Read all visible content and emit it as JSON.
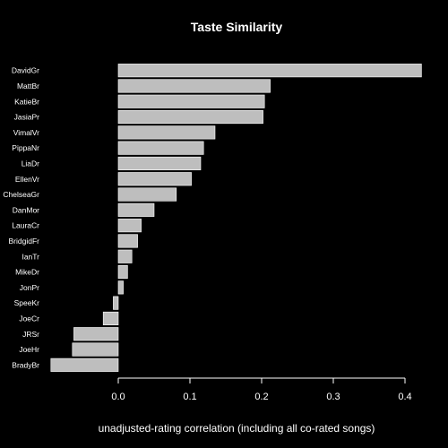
{
  "chart_data": {
    "type": "bar",
    "orientation": "horizontal",
    "title": "Taste Similarity",
    "xlabel": "unadjusted-rating correlation (including all co-rated songs)",
    "ylabel": "",
    "xlim": [
      -0.095,
      0.425
    ],
    "xticks": [
      0.0,
      0.1,
      0.2,
      0.3,
      0.4
    ],
    "xtick_labels": [
      "0.0",
      "0.1",
      "0.2",
      "0.3",
      "0.4"
    ],
    "grid": false,
    "categories": [
      "DavidGr",
      "MattBr",
      "KatieBr",
      "JasiaPr",
      "VimalVr",
      "PippaNr",
      "LiaDr",
      "EllenVr",
      "ChelseaGr",
      "DanMor",
      "LauraCr",
      "BridgidFr",
      "IanTr",
      "MikeDr",
      "JonPr",
      "SpeeKr",
      "JoeCr",
      "JRSr",
      "JoeHr",
      "BradyBr"
    ],
    "values": [
      0.423,
      0.212,
      0.204,
      0.202,
      0.135,
      0.119,
      0.115,
      0.102,
      0.081,
      0.05,
      0.032,
      0.027,
      0.019,
      0.013,
      0.007,
      -0.007,
      -0.021,
      -0.062,
      -0.064,
      -0.094
    ],
    "colors": {
      "background": "#000000",
      "bar_fill": "#bebebe",
      "bar_edge": "#ffffff",
      "text": "#ffffff"
    }
  }
}
